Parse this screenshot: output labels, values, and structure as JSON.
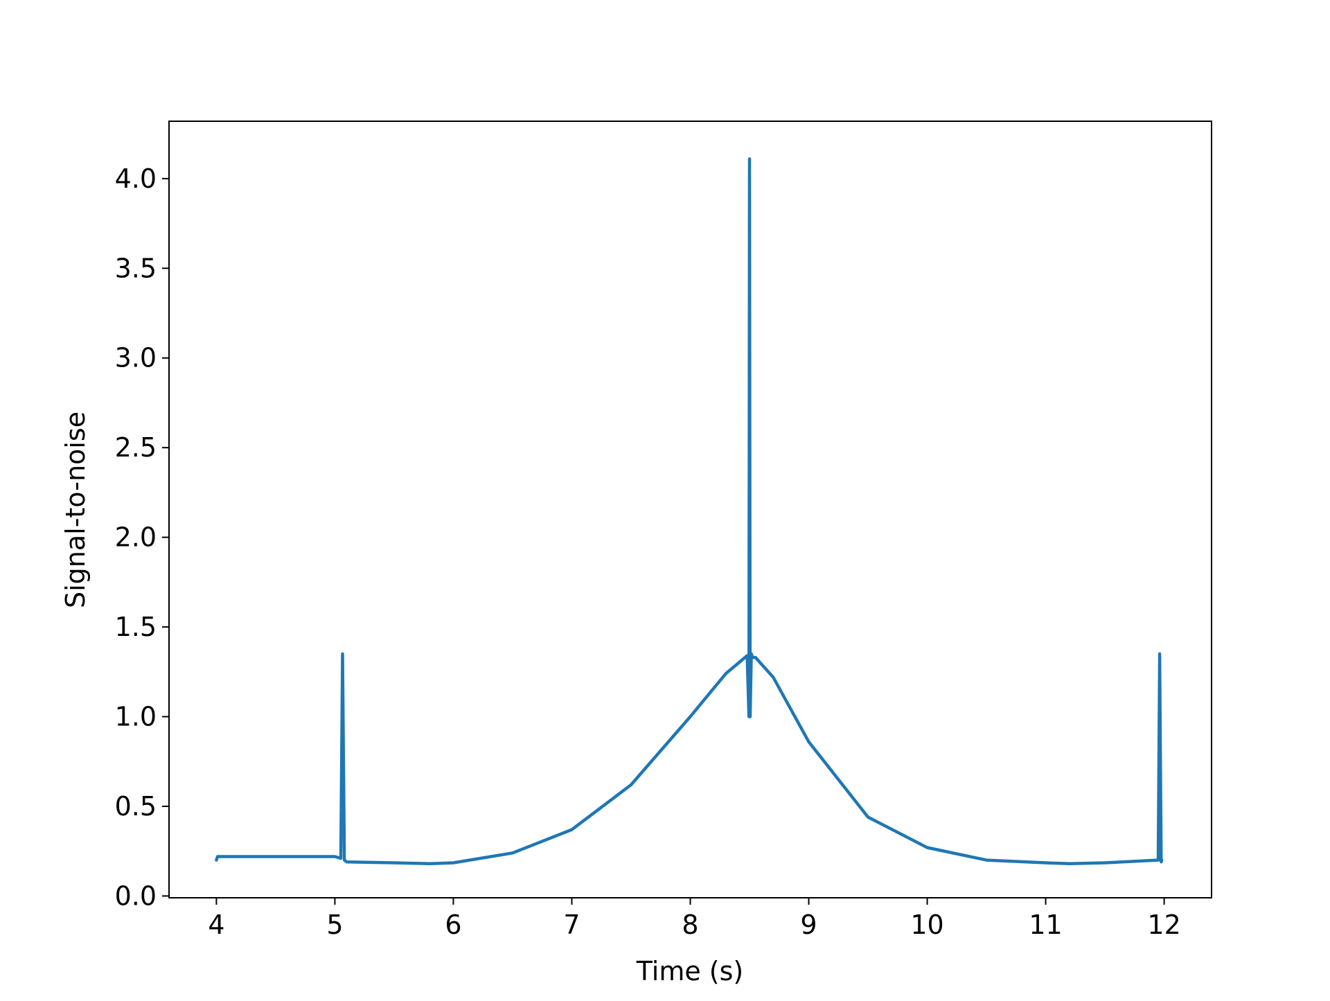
{
  "chart_data": {
    "type": "line",
    "title": "",
    "xlabel": "Time (s)",
    "ylabel": "Signal-to-noise",
    "xlim": [
      3.6,
      12.4
    ],
    "ylim": [
      -0.01,
      4.32
    ],
    "xticks": [
      4,
      5,
      6,
      7,
      8,
      9,
      10,
      11,
      12
    ],
    "yticks": [
      0.0,
      0.5,
      1.0,
      1.5,
      2.0,
      2.5,
      3.0,
      3.5,
      4.0
    ],
    "xtick_labels": [
      "4",
      "5",
      "6",
      "7",
      "8",
      "9",
      "10",
      "11",
      "12"
    ],
    "ytick_labels": [
      "0.0",
      "0.5",
      "1.0",
      "1.5",
      "2.0",
      "2.5",
      "3.0",
      "3.5",
      "4.0"
    ],
    "grid": false,
    "legend": "none",
    "series": [
      {
        "color": "#1f77b4",
        "x": [
          4.0,
          4.01,
          4.5,
          5.0,
          5.05,
          5.065,
          5.08,
          5.1,
          5.5,
          5.8,
          6.0,
          6.5,
          7.0,
          7.5,
          8.0,
          8.3,
          8.48,
          8.495,
          8.5,
          8.505,
          8.515,
          8.52,
          8.53,
          8.55,
          8.7,
          9.0,
          9.5,
          10.0,
          10.5,
          11.0,
          11.2,
          11.5,
          11.95,
          11.962,
          11.975,
          11.98
        ],
        "y": [
          0.2,
          0.22,
          0.22,
          0.22,
          0.21,
          1.35,
          0.2,
          0.19,
          0.185,
          0.18,
          0.185,
          0.24,
          0.37,
          0.62,
          1.0,
          1.24,
          1.34,
          1.0,
          4.11,
          1.0,
          1.35,
          1.34,
          1.33,
          1.33,
          1.22,
          0.86,
          0.44,
          0.27,
          0.2,
          0.185,
          0.18,
          0.185,
          0.2,
          1.35,
          0.19,
          0.2
        ]
      }
    ]
  }
}
